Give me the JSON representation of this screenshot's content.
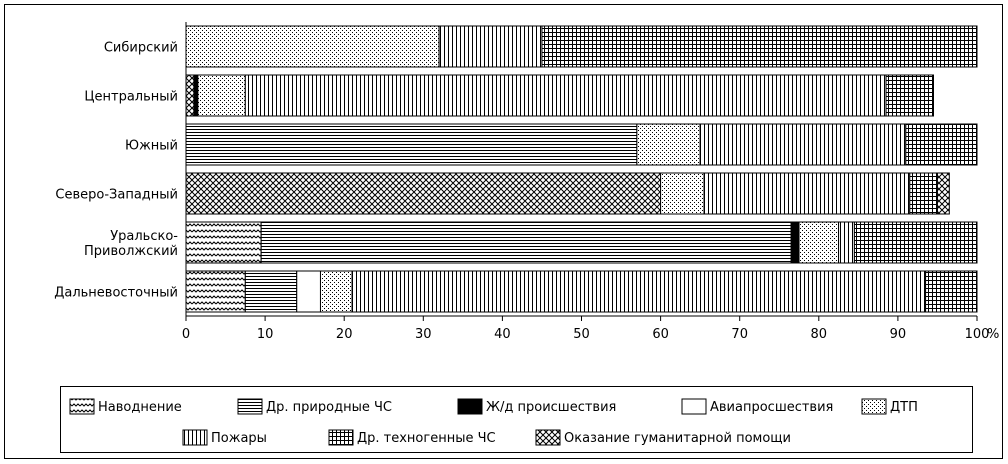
{
  "chart_data": {
    "type": "bar",
    "orientation": "horizontal",
    "stacked": true,
    "categories": [
      "Сибирский",
      "Центральный",
      "Южный",
      "Северо-Западный",
      "Уральско-\nПриволжский",
      "Дальневосточный"
    ],
    "series": [
      {
        "name": "Наводнение",
        "pattern": "zigzag",
        "values": [
          0,
          0,
          0,
          0,
          9.5,
          7.5
        ]
      },
      {
        "name": "Др. природные ЧС",
        "pattern": "hlines",
        "values": [
          0,
          1,
          57,
          60,
          67,
          6.5
        ]
      },
      {
        "name": "Ж/д происшествия",
        "pattern": "solid",
        "values": [
          0,
          0.5,
          0,
          0,
          1,
          0
        ]
      },
      {
        "name": "Авиапросшествия",
        "pattern": "blank",
        "values": [
          0,
          0,
          0,
          0,
          0,
          3
        ]
      },
      {
        "name": "ДТП",
        "pattern": "dots",
        "values": [
          32,
          6,
          8,
          5.5,
          5,
          4
        ]
      },
      {
        "name": "Пожары",
        "pattern": "vlines",
        "values": [
          13,
          81,
          26,
          26,
          2,
          72.5
        ]
      },
      {
        "name": "Др. техногенные ЧС",
        "pattern": "grid",
        "values": [
          55,
          6,
          9,
          3.5,
          15.5,
          6.5
        ]
      },
      {
        "name": "Оказание гуманитарной помощи",
        "pattern": "crosshatch",
        "values": [
          0,
          0,
          0,
          1.5,
          0,
          0
        ]
      }
    ],
    "first_segment_pattern_override": {
      "Центральный": "crosshatch",
      "Северо-Западный": "crosshatch"
    },
    "xlim": [
      0,
      100
    ],
    "xticks": [
      "0",
      "10",
      "20",
      "30",
      "40",
      "50",
      "60",
      "70",
      "80",
      "90",
      "100"
    ],
    "x_unit": "%",
    "grid": false,
    "legend_position": "bottom"
  },
  "legend": {
    "row1": [
      "Наводнение",
      "Др. природные ЧС",
      "Ж/д происшествия",
      "Авиапросшествия",
      "ДТП"
    ],
    "row2": [
      "Пожары",
      "Др. техногенные ЧС",
      "Оказание гуманитарной помощи"
    ]
  }
}
